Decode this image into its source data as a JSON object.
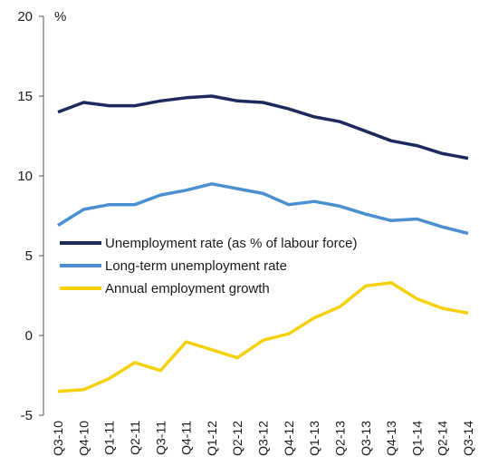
{
  "chart_data": {
    "type": "line",
    "ylabel": "%",
    "ylim": [
      -5,
      20
    ],
    "yticks": [
      20,
      15,
      10,
      5,
      0,
      -5
    ],
    "categories": [
      "Q3-10",
      "Q4-10",
      "Q1-11",
      "Q2-11",
      "Q3-11",
      "Q4-11",
      "Q1-12",
      "Q2-12",
      "Q3-12",
      "Q4-12",
      "Q1-13",
      "Q2-13",
      "Q3-13",
      "Q4-13",
      "Q1-14",
      "Q2-14",
      "Q3-14"
    ],
    "series": [
      {
        "name": "Unemployment rate (as % of labour force)",
        "color": "#1f2a5c",
        "values": [
          14.0,
          14.6,
          14.4,
          14.4,
          14.7,
          14.9,
          15.0,
          14.7,
          14.6,
          14.2,
          13.7,
          13.4,
          12.8,
          12.2,
          11.9,
          11.4,
          11.1
        ]
      },
      {
        "name": "Long-term unemployment rate",
        "color": "#4a8fd0",
        "values": [
          6.9,
          7.9,
          8.2,
          8.2,
          8.8,
          9.1,
          9.5,
          9.2,
          8.9,
          8.2,
          8.4,
          8.1,
          7.6,
          7.2,
          7.3,
          6.8,
          6.4
        ]
      },
      {
        "name": "Annual employment growth",
        "color": "#f5d10c",
        "values": [
          -3.5,
          -3.4,
          -2.7,
          -1.7,
          -2.2,
          -0.4,
          -0.9,
          -1.4,
          -0.3,
          0.1,
          1.1,
          1.8,
          3.1,
          3.3,
          2.3,
          1.7,
          1.4
        ]
      }
    ],
    "legend_position": "center-left",
    "grid": false
  }
}
